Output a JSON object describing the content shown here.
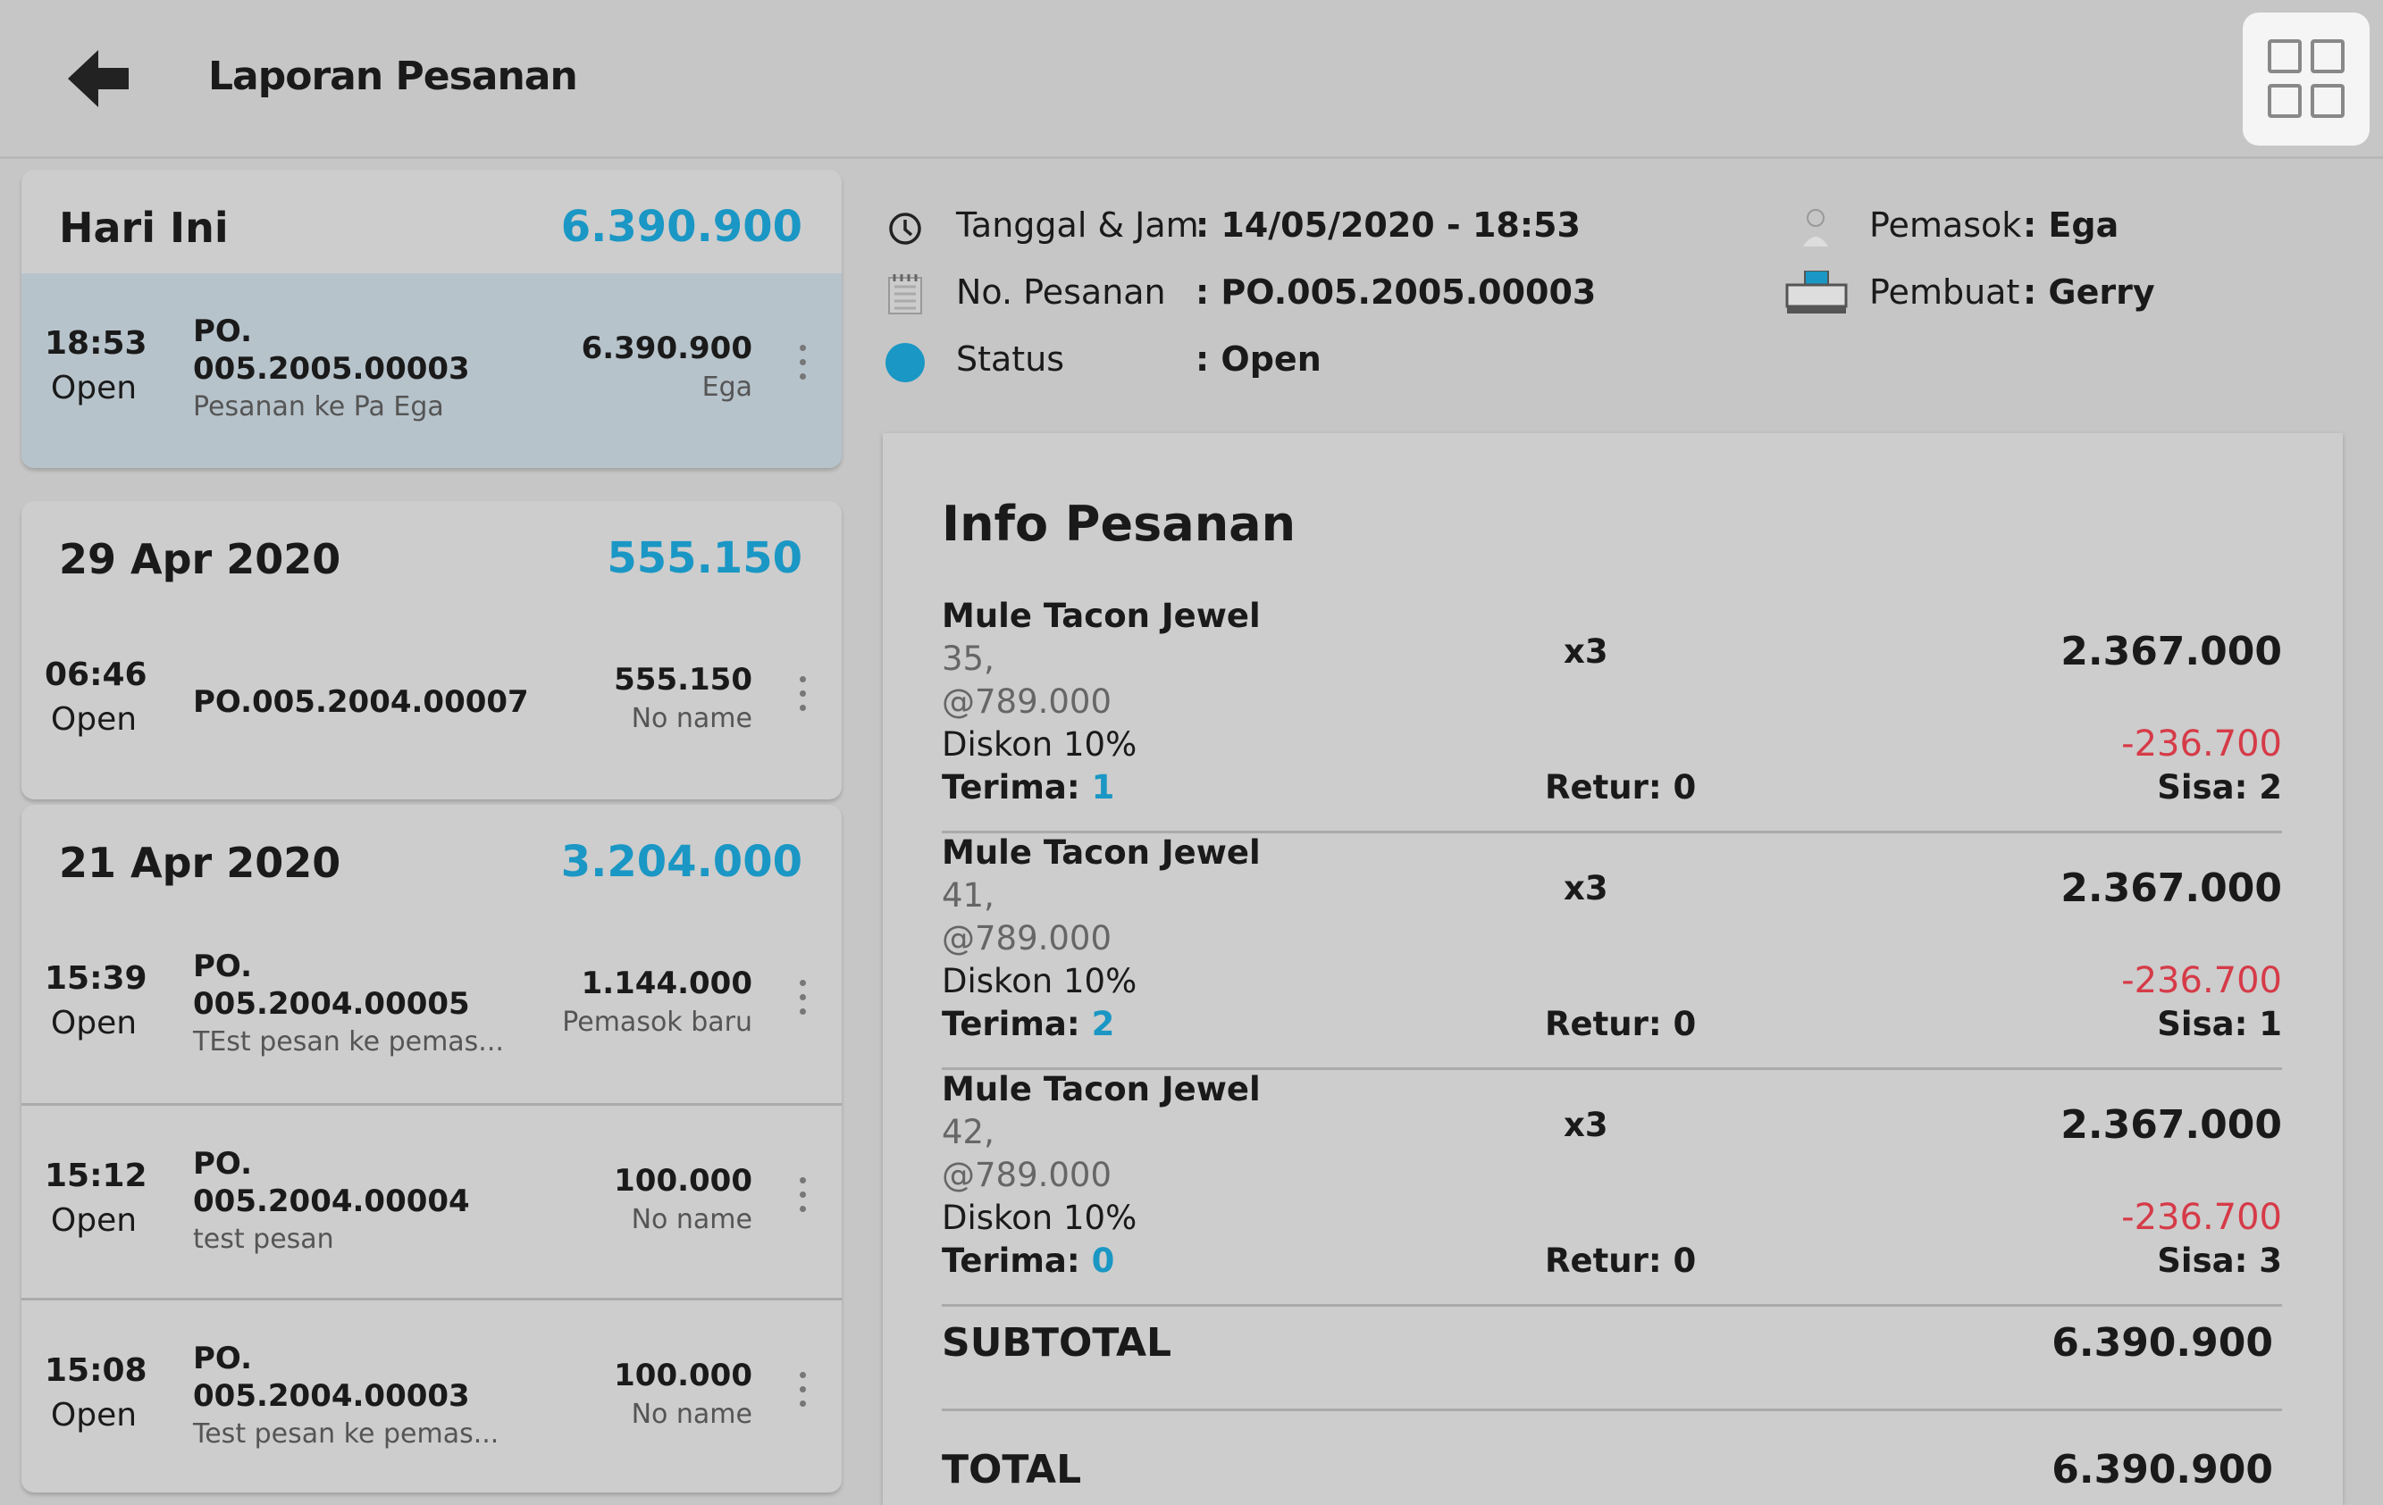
{
  "header": {
    "title": "Laporan Pesanan",
    "back_icon": "arrow-left-icon",
    "grid_icon": "grid-view-icon"
  },
  "colors": {
    "accent": "#1a97c4",
    "negative": "#d63b48",
    "selected_row": "#b7c3cb"
  },
  "groups": [
    {
      "date": "Hari Ini",
      "total": "6.390.900",
      "orders": [
        {
          "time": "18:53",
          "status": "Open",
          "no": "PO. 005.2005.00003",
          "note": "Pesanan ke Pa Ega",
          "amount": "6.390.900",
          "supplier": "Ega",
          "selected": true
        }
      ]
    },
    {
      "date": "29 Apr 2020",
      "total": "555.150",
      "orders": [
        {
          "time": "06:46",
          "status": "Open",
          "no": "PO.005.2004.00007",
          "note": "",
          "amount": "555.150",
          "supplier": "No name"
        }
      ]
    },
    {
      "date": "21 Apr 2020",
      "total": "3.204.000",
      "orders": [
        {
          "time": "15:39",
          "status": "Open",
          "no": "PO. 005.2004.00005",
          "note": "TEst pesan ke pemas...",
          "amount": "1.144.000",
          "supplier": "Pemasok baru"
        },
        {
          "time": "15:12",
          "status": "Open",
          "no": "PO. 005.2004.00004",
          "note": "test pesan",
          "amount": "100.000",
          "supplier": "No name"
        },
        {
          "time": "15:08",
          "status": "Open",
          "no": "PO. 005.2004.00003",
          "note": "Test pesan ke pemas...",
          "amount": "100.000",
          "supplier": "No name"
        }
      ]
    }
  ],
  "detail": {
    "date_label": "Tanggal & Jam",
    "date_value": ": 14/05/2020 - 18:53",
    "no_label": "No. Pesanan",
    "no_value": ": PO.005.2005.00003",
    "status_label": "Status",
    "status_value": ": Open",
    "supplier_label": "Pemasok",
    "supplier_value": ": Ega",
    "creator_label": "Pembuat",
    "creator_value": ": Gerry"
  },
  "info": {
    "title": "Info Pesanan",
    "items": [
      {
        "name": "Mule Tacon Jewel",
        "variant": "35,",
        "price": "@789.000",
        "discount": "Diskon  10%",
        "qty": "x3",
        "amount": "2.367.000",
        "discount_amount": "-236.700",
        "terima_label": "Terima: ",
        "terima": "1",
        "retur": "Retur: 0",
        "sisa": "Sisa: 2"
      },
      {
        "name": "Mule Tacon Jewel",
        "variant": "41,",
        "price": "@789.000",
        "discount": "Diskon  10%",
        "qty": "x3",
        "amount": "2.367.000",
        "discount_amount": "-236.700",
        "terima_label": "Terima: ",
        "terima": "2",
        "retur": "Retur: 0",
        "sisa": "Sisa: 1"
      },
      {
        "name": "Mule Tacon Jewel",
        "variant": "42,",
        "price": "@789.000",
        "discount": "Diskon  10%",
        "qty": "x3",
        "amount": "2.367.000",
        "discount_amount": "-236.700",
        "terima_label": "Terima: ",
        "terima": "0",
        "retur": "Retur: 0",
        "sisa": "Sisa: 3"
      }
    ],
    "subtotal_label": "SUBTOTAL",
    "subtotal": "6.390.900",
    "total_label": "TOTAL",
    "total": "6.390.900"
  }
}
